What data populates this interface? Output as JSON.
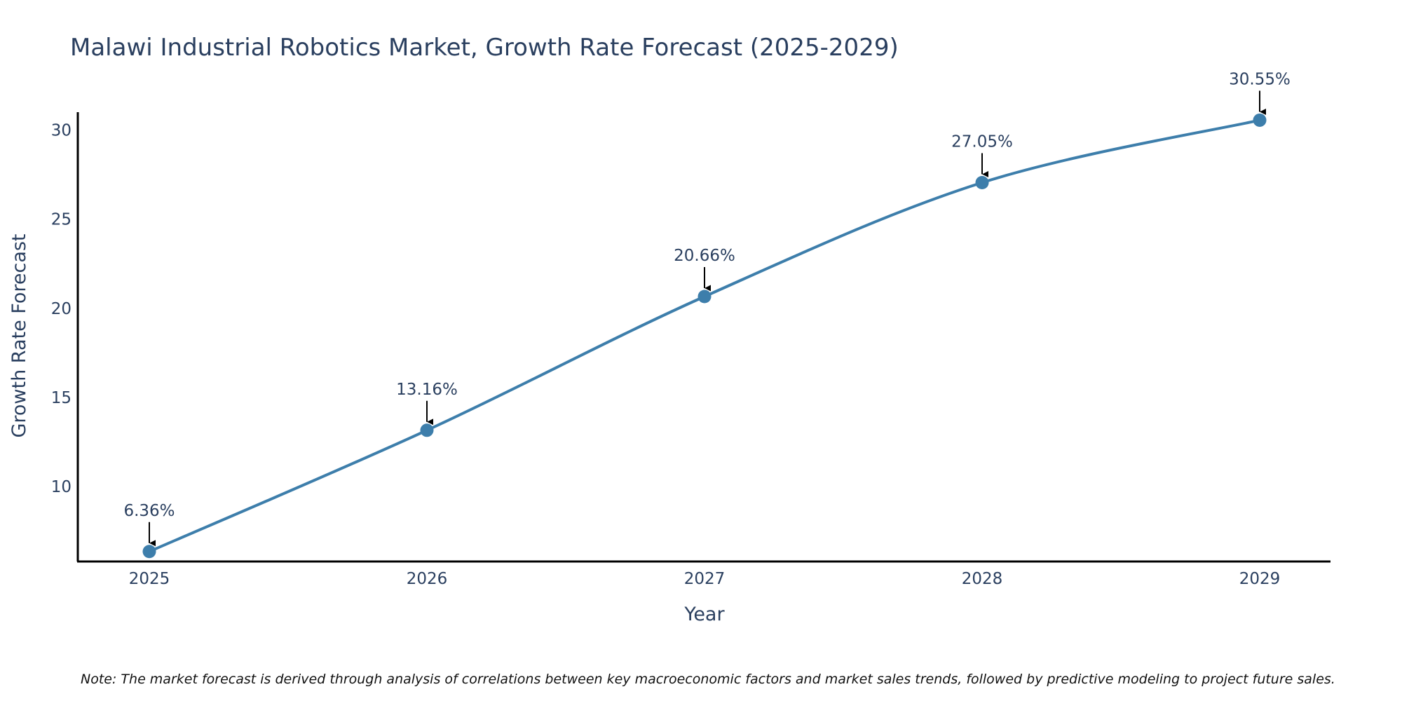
{
  "chart_data": {
    "type": "line",
    "title": "Malawi Industrial Robotics Market, Growth Rate Forecast (2025-2029)",
    "xlabel": "Year",
    "ylabel": "Growth Rate Forecast",
    "categories": [
      "2025",
      "2026",
      "2027",
      "2028",
      "2029"
    ],
    "values": [
      6.36,
      13.16,
      20.66,
      27.05,
      30.55
    ],
    "annotations": [
      "6.36%",
      "13.16%",
      "20.66%",
      "27.05%",
      "30.55%"
    ],
    "y_ticks": [
      10,
      15,
      20,
      25,
      30
    ],
    "y_tick_labels": [
      "10",
      "15",
      "20",
      "25",
      "30"
    ],
    "ylim": [
      5.8,
      31
    ],
    "line_color": "#3d7eab",
    "marker_color": "#3d7eab",
    "grid": false
  },
  "note": "Note: The market forecast is derived through analysis of correlations between key macroeconomic factors and market sales trends, followed by predictive modeling to project future sales."
}
